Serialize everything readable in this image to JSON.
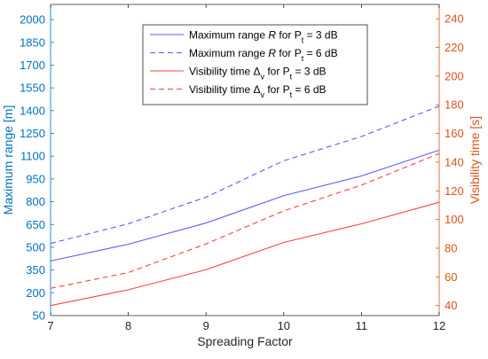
{
  "chart_data": {
    "type": "line",
    "x": [
      7,
      8,
      9,
      10,
      11,
      12
    ],
    "xlabel": "Spreading Factor",
    "xlim": [
      7,
      12
    ],
    "x_ticks": [
      7,
      8,
      9,
      10,
      11,
      12
    ],
    "y_left": {
      "label": "Maximum range [m]",
      "lim": [
        50,
        2100
      ],
      "ticks": [
        50,
        200,
        350,
        500,
        650,
        800,
        950,
        1100,
        1250,
        1400,
        1550,
        1700,
        1850,
        2000
      ],
      "color": "#0072BD"
    },
    "y_right": {
      "label": "Visibility time [s]",
      "lim": [
        33,
        250
      ],
      "ticks": [
        40,
        60,
        80,
        100,
        120,
        140,
        160,
        180,
        200,
        220,
        240
      ],
      "color": "#D95319"
    },
    "series": [
      {
        "axis": "left",
        "color": "#5a5aff",
        "dash": "solid",
        "legend_parts": [
          "Maximum range  ",
          "R",
          "  for P",
          "t",
          " = 3 dB"
        ],
        "values": [
          410,
          520,
          660,
          840,
          970,
          1140
        ]
      },
      {
        "axis": "left",
        "color": "#5a5aff",
        "dash": "dashed",
        "legend_parts": [
          "Maximum range  ",
          "R",
          "  for P",
          "t",
          " = 6 dB"
        ],
        "values": [
          525,
          655,
          830,
          1070,
          1230,
          1430
        ]
      },
      {
        "axis": "right",
        "color": "#ff4040",
        "dash": "solid",
        "legend_parts": [
          "Visibility time ",
          "Δ",
          "v",
          "  for P",
          "t",
          " = 3 dB"
        ],
        "values": [
          40,
          51,
          65,
          84,
          97,
          112
        ]
      },
      {
        "axis": "right",
        "color": "#ff4040",
        "dash": "dashed",
        "legend_parts": [
          "Visibility time ",
          "Δ",
          "v",
          "  for P",
          "t",
          " = 6 dB"
        ],
        "values": [
          52,
          63,
          83,
          106,
          124,
          146
        ]
      }
    ],
    "grid": false,
    "legend_position": "top-center"
  }
}
